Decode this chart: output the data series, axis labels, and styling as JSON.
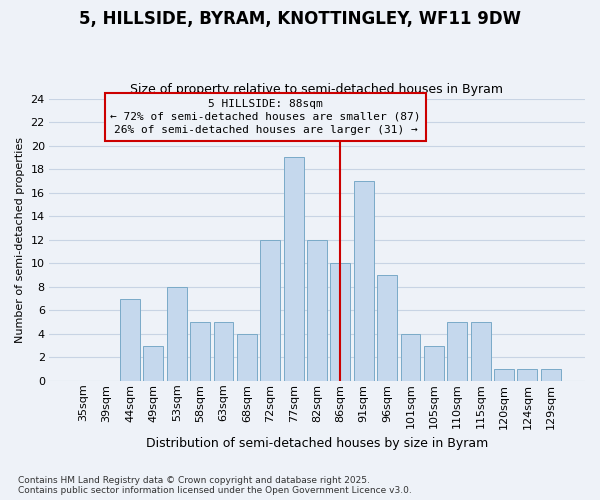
{
  "title": "5, HILLSIDE, BYRAM, KNOTTINGLEY, WF11 9DW",
  "subtitle": "Size of property relative to semi-detached houses in Byram",
  "xlabel": "Distribution of semi-detached houses by size in Byram",
  "ylabel": "Number of semi-detached properties",
  "categories": [
    "35sqm",
    "39sqm",
    "44sqm",
    "49sqm",
    "53sqm",
    "58sqm",
    "63sqm",
    "68sqm",
    "72sqm",
    "77sqm",
    "82sqm",
    "86sqm",
    "91sqm",
    "96sqm",
    "101sqm",
    "105sqm",
    "110sqm",
    "115sqm",
    "120sqm",
    "124sqm",
    "129sqm"
  ],
  "values": [
    0,
    0,
    7,
    3,
    8,
    5,
    5,
    4,
    12,
    19,
    12,
    10,
    17,
    9,
    4,
    3,
    5,
    5,
    1,
    1,
    1
  ],
  "bar_color": "#c5d8ed",
  "bar_edge_color": "#7aaac8",
  "marker_index": 11,
  "marker_label": "5 HILLSIDE: 88sqm",
  "marker_line_color": "#cc0000",
  "marker_box_color": "#cc0000",
  "annotation_line1": "← 72% of semi-detached houses are smaller (87)",
  "annotation_line2": "26% of semi-detached houses are larger (31) →",
  "ylim": [
    0,
    24
  ],
  "yticks": [
    0,
    2,
    4,
    6,
    8,
    10,
    12,
    14,
    16,
    18,
    20,
    22,
    24
  ],
  "grid_color": "#c8d4e4",
  "bg_color": "#eef2f8",
  "footer": "Contains HM Land Registry data © Crown copyright and database right 2025.\nContains public sector information licensed under the Open Government Licence v3.0.",
  "title_fontsize": 12,
  "subtitle_fontsize": 9,
  "xlabel_fontsize": 9,
  "ylabel_fontsize": 8,
  "annot_fontsize": 8,
  "tick_fontsize": 8,
  "footer_fontsize": 6.5
}
